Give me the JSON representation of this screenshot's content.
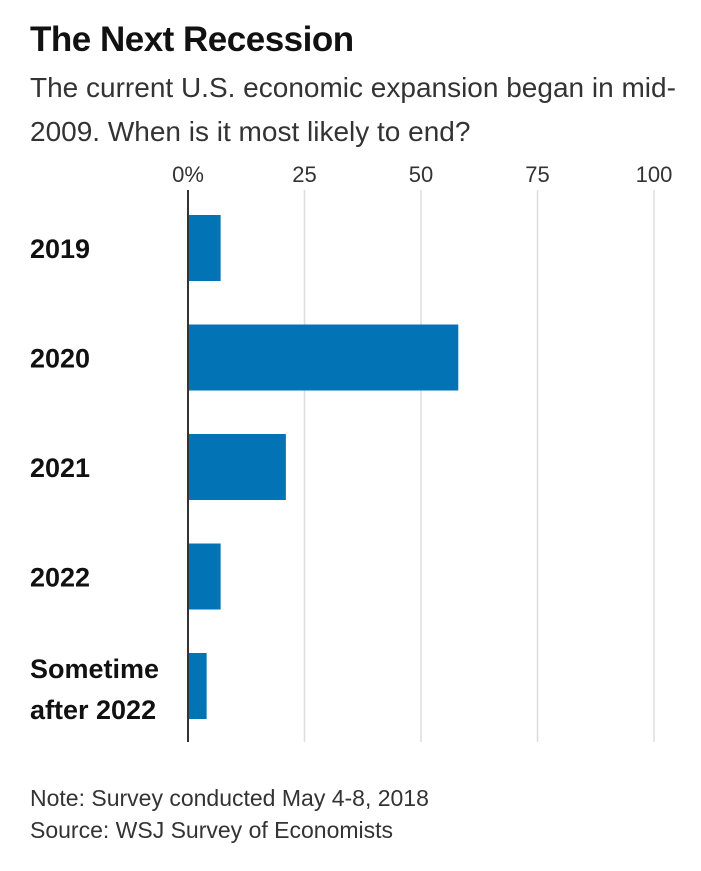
{
  "chart_data": {
    "type": "bar",
    "orientation": "horizontal",
    "title": "The Next Recession",
    "subtitle": "The current U.S. economic expansion began in mid-2009. When is it most likely to end?",
    "categories": [
      "2019",
      "2020",
      "2021",
      "2022",
      "Sometime after 2022"
    ],
    "values": [
      7,
      58,
      21,
      7,
      4
    ],
    "xlim": [
      0,
      100
    ],
    "xticks": [
      0,
      25,
      50,
      75,
      100
    ],
    "xtick_labels": [
      "0%",
      "25",
      "50",
      "75",
      "100"
    ],
    "xaxis_position": "top",
    "grid": true,
    "bar_color": "#0274b6",
    "grid_color": "#dddddd"
  },
  "footer": {
    "note": "Note: Survey conducted May 4-8, 2018",
    "source": "Source: WSJ Survey of Economists"
  }
}
